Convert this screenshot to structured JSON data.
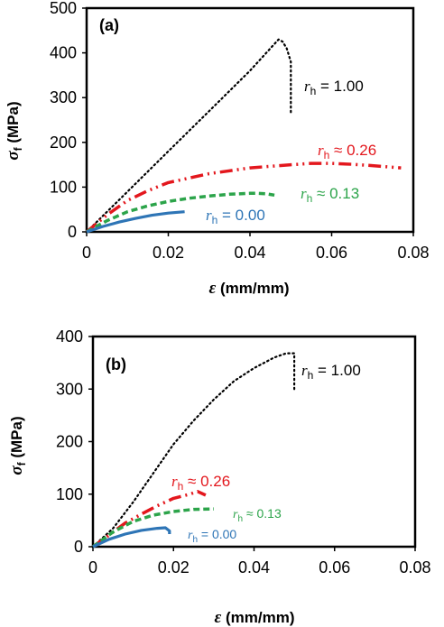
{
  "colors": {
    "rh_1_00": "#000000",
    "rh_0_26": "#e3171d",
    "rh_0_13": "#2ca44a",
    "rh_0_00": "#2e75b6"
  },
  "chart_data": [
    {
      "type": "line",
      "panel_label": "(a)",
      "xlabel_symbol": "ε",
      "xlabel_unit": "(mm/mm)",
      "ylabel_symbol": "σ",
      "ylabel_sub": "f",
      "ylabel_unit": "(MPa)",
      "xlim": [
        0,
        0.08
      ],
      "ylim": [
        0,
        500
      ],
      "xticks": [
        "0",
        "0.02",
        "0.04",
        "0.06",
        "0.08"
      ],
      "yticks": [
        "0",
        "100",
        "200",
        "300",
        "400",
        "500"
      ],
      "grid": false,
      "series": [
        {
          "name": "r_h = 1.00",
          "label_symbol": "r",
          "label_sub": "h",
          "label_rest": " = 1.00",
          "style": "dotted",
          "color_key": "rh_1_00",
          "x": [
            0,
            0.01,
            0.02,
            0.03,
            0.04,
            0.046,
            0.047,
            0.048,
            0.049,
            0.05,
            0.05,
            0.05,
            0.05
          ],
          "y": [
            0,
            90,
            180,
            270,
            360,
            420,
            430,
            425,
            410,
            380,
            330,
            290,
            265
          ]
        },
        {
          "name": "r_h ≈ 0.26",
          "label_symbol": "r",
          "label_sub": "h",
          "label_rest": " ≈ 0.26",
          "style": "dashdotdot",
          "color_key": "rh_0_26",
          "x": [
            0,
            0.005,
            0.01,
            0.015,
            0.02,
            0.03,
            0.04,
            0.05,
            0.055,
            0.06,
            0.065,
            0.07,
            0.077
          ],
          "y": [
            0,
            38,
            70,
            92,
            110,
            130,
            143,
            150,
            153,
            153,
            151,
            148,
            143
          ]
        },
        {
          "name": "r_h ≈ 0.13",
          "label_symbol": "r",
          "label_sub": "h",
          "label_rest": " ≈ 0.13",
          "style": "dashed",
          "color_key": "rh_0_13",
          "x": [
            0,
            0.005,
            0.01,
            0.015,
            0.02,
            0.025,
            0.03,
            0.035,
            0.04,
            0.042,
            0.044,
            0.046
          ],
          "y": [
            0,
            25,
            45,
            58,
            68,
            75,
            80,
            84,
            86,
            86,
            85,
            82
          ]
        },
        {
          "name": "r_h = 0.00",
          "label_symbol": "r",
          "label_sub": "h",
          "label_rest": " = 0.00",
          "style": "solid",
          "color_key": "rh_0_00",
          "x": [
            0,
            0.004,
            0.008,
            0.012,
            0.016,
            0.02,
            0.024
          ],
          "y": [
            0,
            12,
            22,
            30,
            37,
            42,
            45
          ]
        }
      ]
    },
    {
      "type": "line",
      "panel_label": "(b)",
      "xlabel_symbol": "ε",
      "xlabel_unit": "(mm/mm)",
      "ylabel_symbol": "σ",
      "ylabel_sub": "f",
      "ylabel_unit": "(MPa)",
      "xlim": [
        0,
        0.08
      ],
      "ylim": [
        0,
        400
      ],
      "xticks": [
        "0",
        "0.02",
        "0.04",
        "0.06",
        "0.08"
      ],
      "yticks": [
        "0",
        "100",
        "200",
        "300",
        "400"
      ],
      "grid": false,
      "series": [
        {
          "name": "r_h = 1.00",
          "label_symbol": "r",
          "label_sub": "h",
          "label_rest": " = 1.00",
          "style": "dotted",
          "color_key": "rh_1_00",
          "x": [
            0,
            0.005,
            0.01,
            0.015,
            0.02,
            0.025,
            0.03,
            0.035,
            0.04,
            0.045,
            0.048,
            0.05,
            0.05,
            0.05,
            0.05
          ],
          "y": [
            0,
            35,
            85,
            140,
            195,
            240,
            280,
            315,
            340,
            360,
            368,
            368,
            340,
            310,
            295
          ]
        },
        {
          "name": "r_h ≈ 0.26",
          "label_symbol": "r",
          "label_sub": "h",
          "label_rest": " ≈ 0.26",
          "style": "dashdotdot",
          "color_key": "rh_0_26",
          "x": [
            0,
            0.004,
            0.008,
            0.012,
            0.016,
            0.02,
            0.024,
            0.026,
            0.028
          ],
          "y": [
            0,
            22,
            45,
            62,
            78,
            92,
            100,
            105,
            98
          ]
        },
        {
          "name": "r_h ≈ 0.13",
          "label_symbol": "r",
          "label_sub": "h",
          "label_rest": " ≈ 0.13",
          "style": "dashed",
          "color_key": "rh_0_13",
          "x": [
            0,
            0.005,
            0.01,
            0.015,
            0.02,
            0.025,
            0.03
          ],
          "y": [
            0,
            28,
            48,
            60,
            67,
            71,
            72
          ]
        },
        {
          "name": "r_h = 0.00",
          "label_symbol": "r",
          "label_sub": "h",
          "label_rest": " = 0.00",
          "style": "solid",
          "color_key": "rh_0_00",
          "x": [
            0,
            0.004,
            0.008,
            0.012,
            0.016,
            0.018,
            0.019,
            0.019
          ],
          "y": [
            0,
            14,
            24,
            31,
            35,
            36,
            30,
            24
          ]
        }
      ]
    }
  ]
}
